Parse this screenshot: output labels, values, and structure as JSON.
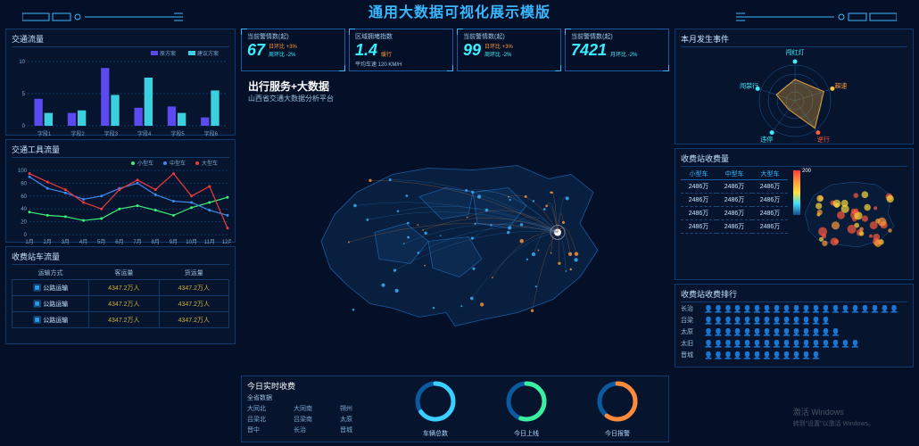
{
  "header": {
    "title": "通用大数据可视化展示模版"
  },
  "accent": "#3ab8ff",
  "kpis": [
    {
      "label": "当前警情数(起)",
      "value": "67",
      "day": "日环比 +3%",
      "week": "周环比 -2%"
    },
    {
      "label": "区域拥堵指数",
      "value": "1.4",
      "status": "缓行",
      "extra": "平均车速 120 KM/H"
    },
    {
      "label": "当前警情数(起)",
      "value": "99",
      "day": "日环比 +3%",
      "week": "周环比 -2%"
    },
    {
      "label": "当前警情数(起)",
      "value": "7421",
      "month": "月环比 -2%"
    }
  ],
  "center": {
    "title": "出行服务+大数据",
    "subtitle": "山西省交通大数据分析平台"
  },
  "barChart": {
    "title": "交通流量",
    "type": "bar",
    "legend": [
      "原方案",
      "建议方案"
    ],
    "legend_colors": [
      "#5a4af0",
      "#3ad0e0"
    ],
    "categories": [
      "字段1",
      "字段2",
      "字段3",
      "字段4",
      "字段5",
      "字段6"
    ],
    "series": [
      {
        "color": "#5a4af0",
        "values": [
          4.2,
          2.0,
          9.0,
          2.8,
          3.0,
          1.3
        ]
      },
      {
        "color": "#3ad0e0",
        "values": [
          2.0,
          2.4,
          4.8,
          7.5,
          2.0,
          5.5
        ]
      }
    ],
    "ylim": [
      0,
      10
    ],
    "yticks": [
      0,
      5,
      10
    ],
    "grid_color": "#0e3a6e"
  },
  "lineChart": {
    "title": "交通工具流量",
    "type": "line",
    "legend": [
      "小型车",
      "中型车",
      "大型车"
    ],
    "legend_colors": [
      "#3af07a",
      "#3a8af0",
      "#f03a3a"
    ],
    "x": [
      "1月",
      "2月",
      "3月",
      "4月",
      "5月",
      "6月",
      "7月",
      "8月",
      "9月",
      "10月",
      "11月",
      "12月"
    ],
    "series": [
      {
        "color": "#3af07a",
        "values": [
          35,
          30,
          28,
          22,
          25,
          40,
          45,
          38,
          30,
          42,
          50,
          58
        ]
      },
      {
        "color": "#3a8af0",
        "values": [
          90,
          72,
          65,
          55,
          60,
          72,
          80,
          62,
          52,
          50,
          38,
          30
        ]
      },
      {
        "color": "#f03a3a",
        "values": [
          95,
          82,
          70,
          50,
          40,
          70,
          85,
          70,
          95,
          60,
          75,
          10
        ]
      }
    ],
    "ylim": [
      0,
      100
    ],
    "yticks": [
      0,
      20,
      40,
      60,
      80,
      100
    ],
    "grid_color": "#0e3a6e"
  },
  "trafficTable": {
    "title": "收费站车流量",
    "columns": [
      "运输方式",
      "客运量",
      "货运量"
    ],
    "rows": [
      [
        "公路运输",
        "4347.2万人",
        "4347.2万人"
      ],
      [
        "公路运输",
        "4347.2万人",
        "4347.2万人"
      ],
      [
        "公路运输",
        "4347.2万人",
        "4347.2万人"
      ]
    ],
    "value_color": "#d0b03a"
  },
  "realtime": {
    "title": "今日实时收费",
    "subtitle": "全省数据",
    "cities": [
      "大同北",
      "大同南",
      "朔州",
      "吕梁北",
      "吕梁南",
      "太原",
      "晋中",
      "长治",
      "晋城"
    ],
    "rings": [
      {
        "label": "车辆总数",
        "pct": 65,
        "color1": "#0a5aa0",
        "color2": "#3ad0ff"
      },
      {
        "label": "今日上线",
        "pct": 55,
        "color1": "#0a5aa0",
        "color2": "#3af0a0"
      },
      {
        "label": "今日报警",
        "pct": 60,
        "color1": "#0a5aa0",
        "color2": "#ff8a3a"
      }
    ]
  },
  "radar": {
    "title": "本月发生事件",
    "axes": [
      "闯红灯",
      "超速",
      "逆行",
      "违停",
      "闯禁行"
    ],
    "values": [
      60,
      85,
      95,
      30,
      55
    ],
    "max": 100,
    "line_color": "#e0a03a",
    "fill_color": "rgba(224,160,58,0.35)",
    "grid_color": "#1a5a9e",
    "label_colors": [
      "#3af0ff",
      "#ff993a",
      "#ff5a3a",
      "#3af0ff",
      "#3af0ff"
    ],
    "dot_colors": [
      "#3af0ff",
      "#ffc03a",
      "#ff5a3a",
      "#3af0ff",
      "#3af0ff"
    ]
  },
  "tollTable": {
    "title": "收费站收费量",
    "columns": [
      "小型车",
      "中型车",
      "大型车"
    ],
    "rows": [
      [
        "2486万",
        "2486万",
        "2486万"
      ],
      [
        "2486万",
        "2486万",
        "2486万"
      ],
      [
        "2486万",
        "2486万",
        "2486万"
      ],
      [
        "2486万",
        "2486万",
        "2486万"
      ]
    ]
  },
  "heatLegend": {
    "max": "200"
  },
  "ranking": {
    "title": "收费站收费排行",
    "rows": [
      {
        "city": "长治",
        "count": 20,
        "color": "#2a98e8"
      },
      {
        "city": "吕梁",
        "count": 13,
        "color": "#ff8a3a"
      },
      {
        "city": "太原",
        "count": 14,
        "color": "#2a98e8"
      },
      {
        "city": "太旧",
        "count": 16,
        "color": "#2a98e8"
      },
      {
        "city": "晋城",
        "count": 12,
        "color": "#2a98e8"
      }
    ]
  },
  "watermark": {
    "line1": "激活 Windows",
    "line2": "转到\"设置\"以激活 Windows。"
  }
}
